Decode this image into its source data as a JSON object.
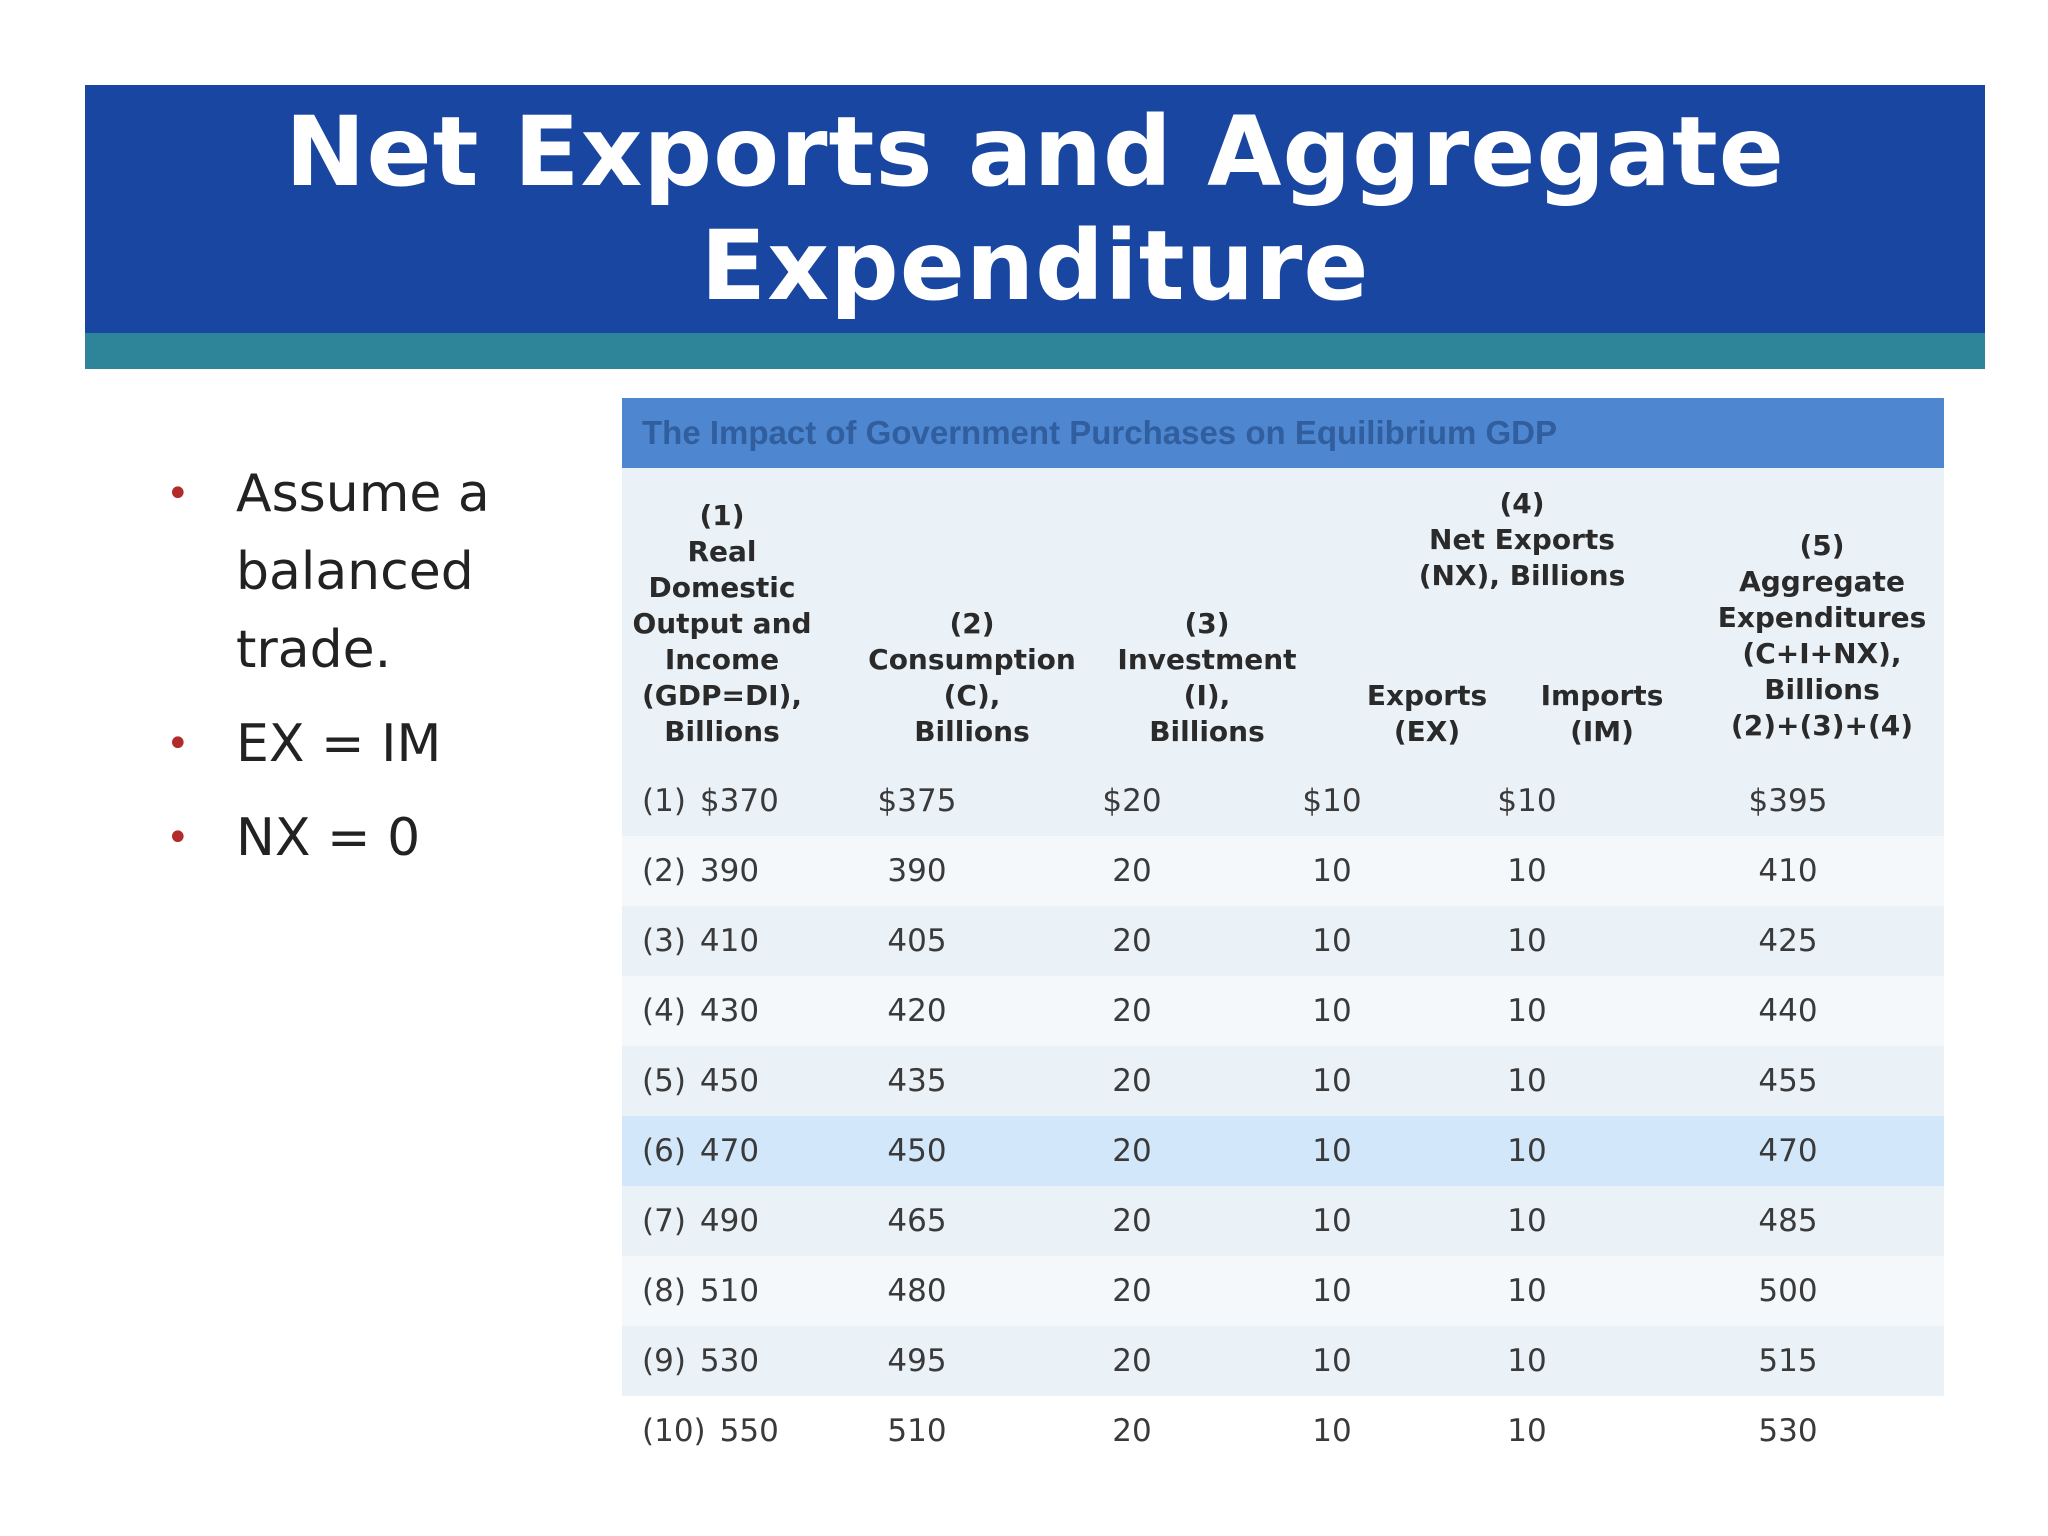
{
  "slide": {
    "title": "Net Exports and Aggregate Expenditure",
    "bullets": [
      "Assume a balanced trade.",
      "EX = IM",
      "NX = 0"
    ]
  },
  "table": {
    "caption": "The Impact of Government Purchases on Equilibrium GDP",
    "headers": {
      "col1": "(1)\nReal\nDomestic\nOutput and\nIncome\n(GDP=DI),\nBillions",
      "col2": "(2)\nConsumption\n(C),\nBillions",
      "col3": "(3)\nInvestment\n(I),\nBillions",
      "col4_group": "(4)\nNet Exports\n(NX), Billions",
      "col4_exports": "Exports\n(EX)",
      "col4_imports": "Imports\n(IM)",
      "col5": "(5)\nAggregate\nExpenditures\n(C+I+NX),\nBillions\n(2)+(3)+(4)"
    },
    "rows": [
      {
        "label": "(1)",
        "gdp": "$370",
        "c": "$375",
        "i": "$20",
        "ex": "$10",
        "im": "$10",
        "ae": "$395"
      },
      {
        "label": "(2)",
        "gdp": "390",
        "c": "390",
        "i": "20",
        "ex": "10",
        "im": "10",
        "ae": "410"
      },
      {
        "label": "(3)",
        "gdp": "410",
        "c": "405",
        "i": "20",
        "ex": "10",
        "im": "10",
        "ae": "425"
      },
      {
        "label": "(4)",
        "gdp": "430",
        "c": "420",
        "i": "20",
        "ex": "10",
        "im": "10",
        "ae": "440"
      },
      {
        "label": "(5)",
        "gdp": "450",
        "c": "435",
        "i": "20",
        "ex": "10",
        "im": "10",
        "ae": "455"
      },
      {
        "label": "(6)",
        "gdp": "470",
        "c": "450",
        "i": "20",
        "ex": "10",
        "im": "10",
        "ae": "470"
      },
      {
        "label": "(7)",
        "gdp": "490",
        "c": "465",
        "i": "20",
        "ex": "10",
        "im": "10",
        "ae": "485"
      },
      {
        "label": "(8)",
        "gdp": "510",
        "c": "480",
        "i": "20",
        "ex": "10",
        "im": "10",
        "ae": "500"
      },
      {
        "label": "(9)",
        "gdp": "530",
        "c": "495",
        "i": "20",
        "ex": "10",
        "im": "10",
        "ae": "515"
      },
      {
        "label": "(10)",
        "gdp": "550",
        "c": "510",
        "i": "20",
        "ex": "10",
        "im": "10",
        "ae": "530"
      }
    ],
    "highlight_row_index": 5
  },
  "colors": {
    "title_bar": "#1946a0",
    "title_underline": "#2e8499",
    "caption_bar": "#4e86cf",
    "bullet": "#b22a2a",
    "highlight_row": "#d2e8fa",
    "row_even": "#f4f8fb",
    "row_odd": "#eaf2f8"
  }
}
